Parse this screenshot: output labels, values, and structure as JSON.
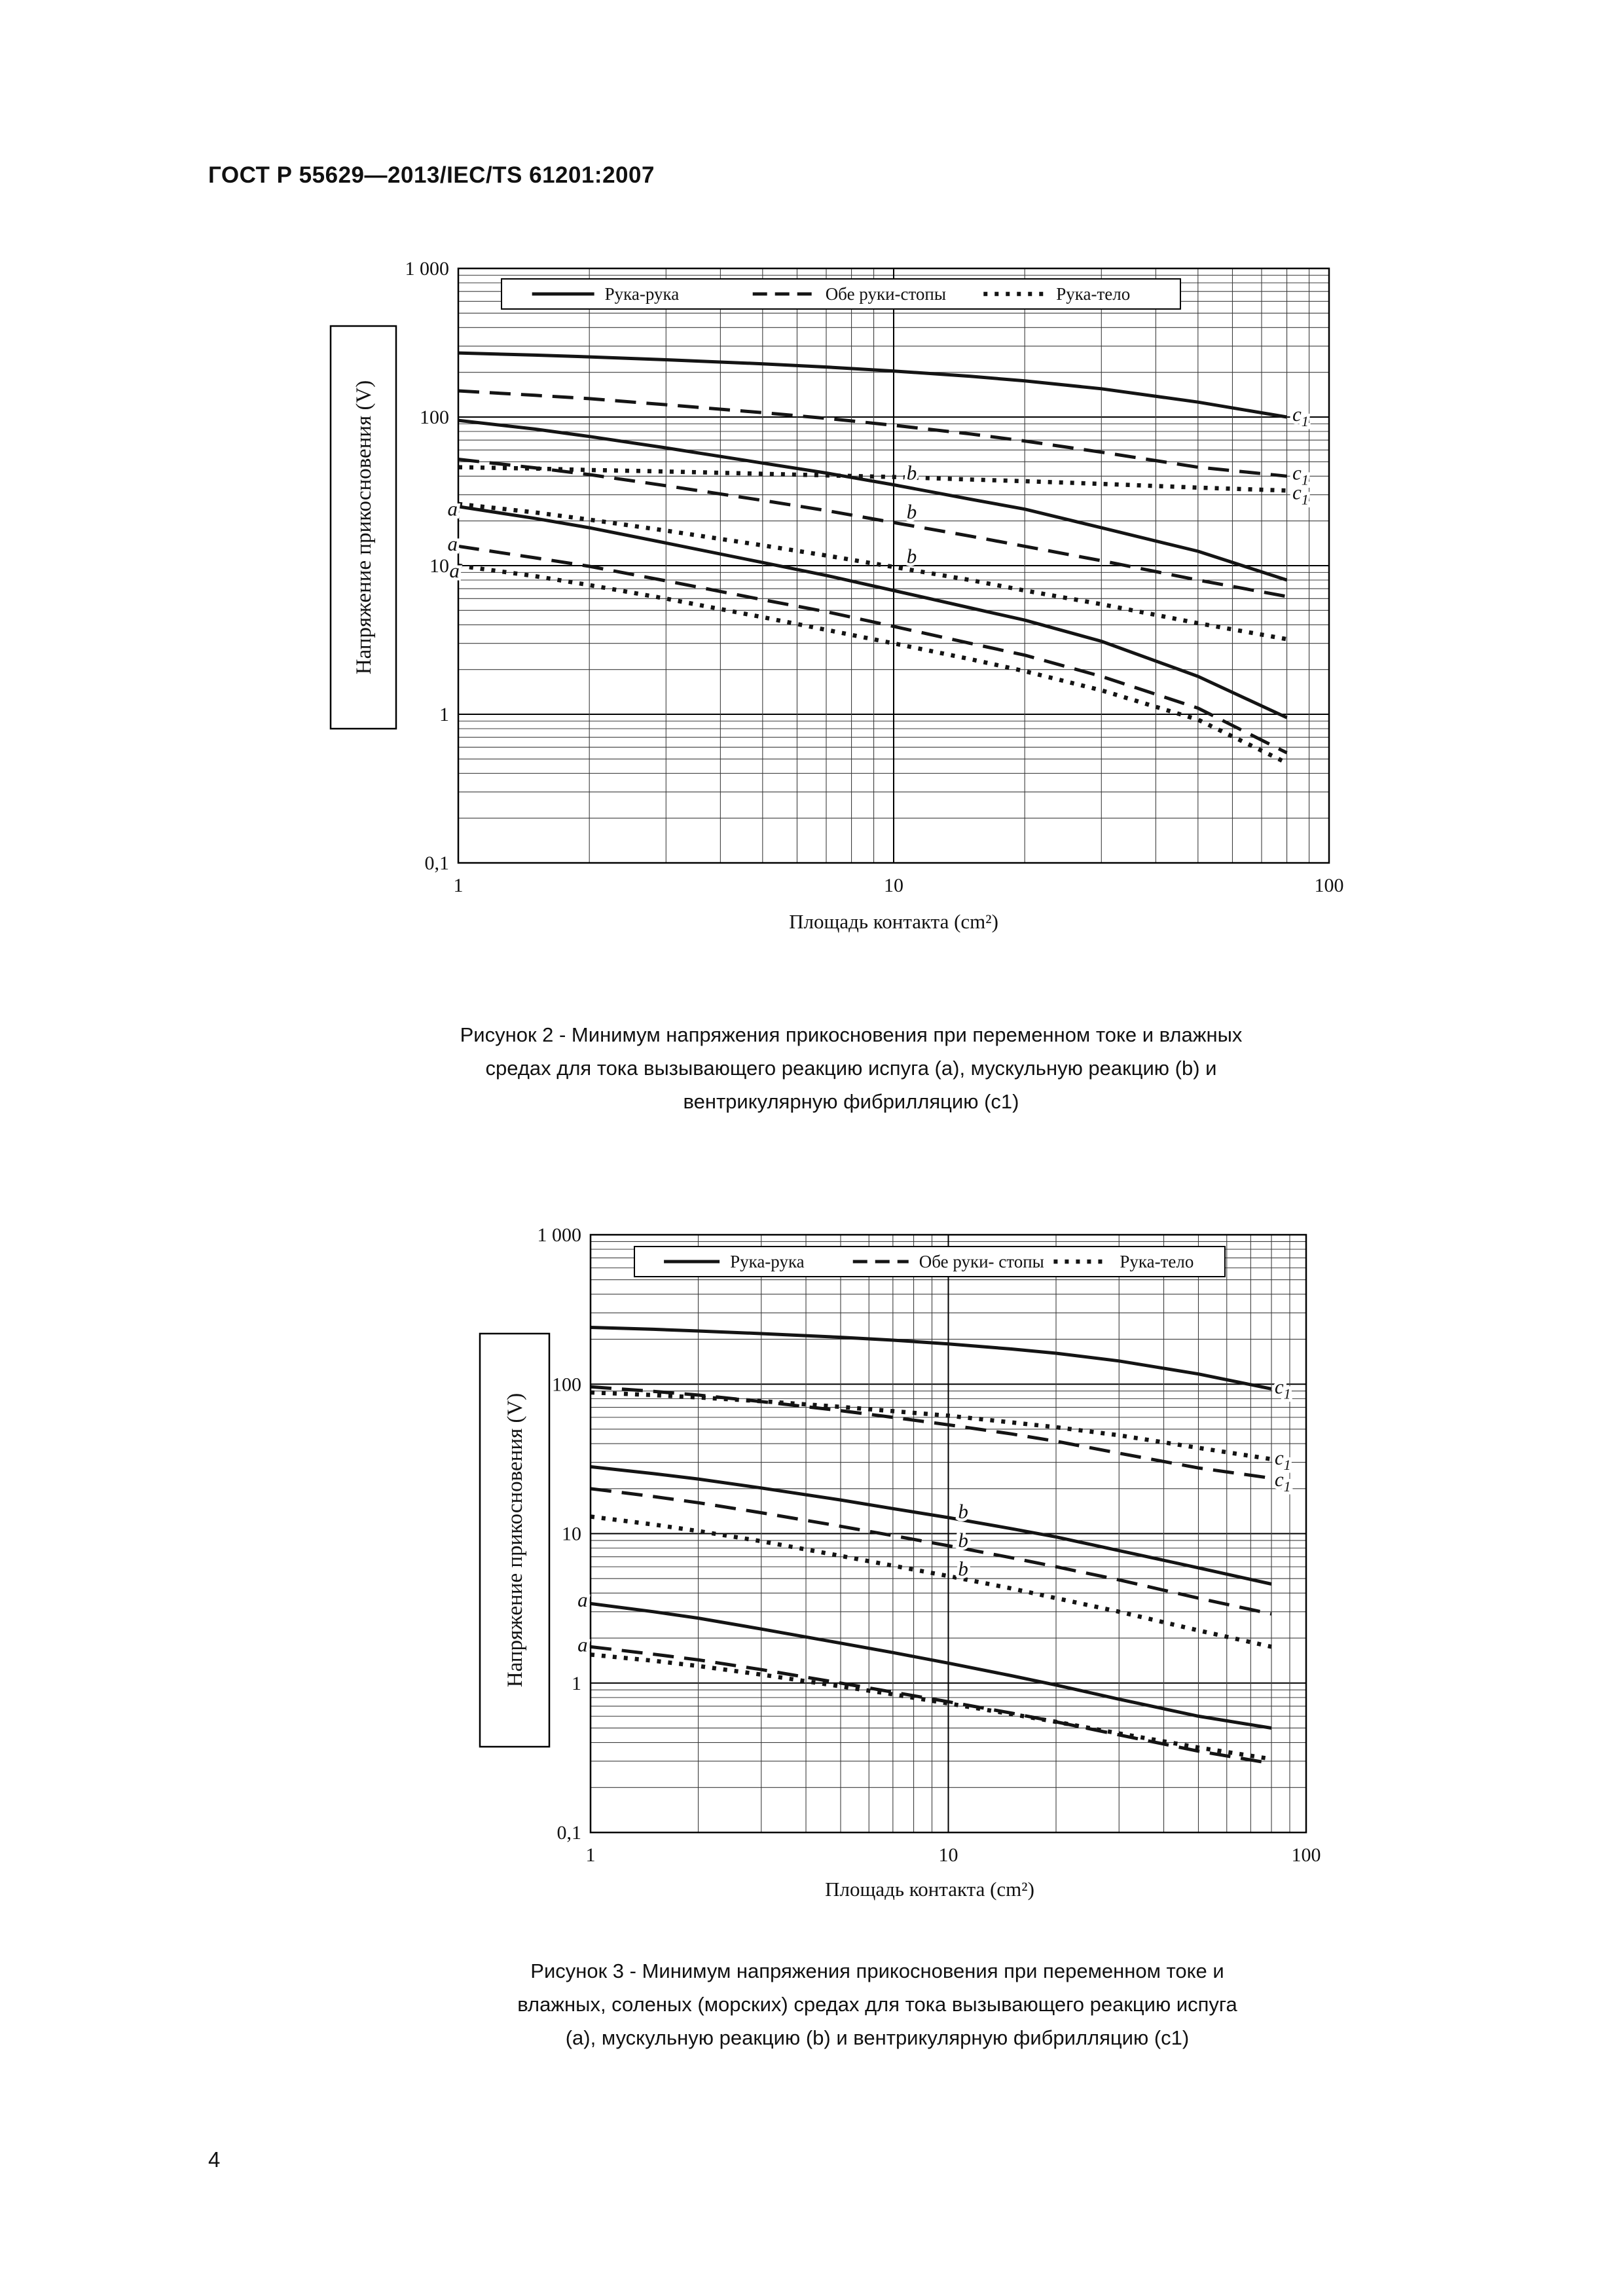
{
  "header": {
    "title": "ГОСТ Р 55629—2013/IEC/TS 61201:2007"
  },
  "footer": {
    "page_number": "4"
  },
  "captions": {
    "figure2": [
      "Рисунок 2 - Минимум напряжения прикосновения при переменном токе и влажных",
      "средах для тока вызывающего реакцию испуга (a), мускульную реакцию (b) и",
      "вентрикулярную фибрилляцию (c1)"
    ],
    "figure3": [
      "Рисунок 3 - Минимум напряжения прикосновения при переменном токе и",
      "влажных, соленых (морских) средах для тока вызывающего реакцию испуга",
      "(a), мускульную реакцию (b) и вентрикулярную фибрилляцию  (c1)"
    ]
  },
  "chart_data": [
    {
      "id": "figure2",
      "type": "line",
      "title": "",
      "xlabel": "Площадь контакта (cm²)",
      "ylabel": "Напряжение прикосновения (V)",
      "xscale": "log",
      "yscale": "log",
      "xlim": [
        1,
        100
      ],
      "ylim": [
        0.1,
        1000
      ],
      "grid": true,
      "legend_position": "top",
      "x_ticks": [
        {
          "label": "1",
          "value": 1
        },
        {
          "label": "10",
          "value": 10
        },
        {
          "label": "100",
          "value": 100
        }
      ],
      "y_ticks": [
        {
          "label": "1 000",
          "value": 1000
        },
        {
          "label": "100",
          "value": 100
        },
        {
          "label": "10",
          "value": 10
        },
        {
          "label": "1",
          "value": 1
        },
        {
          "label": "0,1",
          "value": 0.1
        }
      ],
      "legend": [
        {
          "label": "Рука-рука",
          "style": "solid"
        },
        {
          "label": "Обе руки-стопы",
          "style": "dashed"
        },
        {
          "label": "Рука-тело",
          "style": "dotted"
        }
      ],
      "x": [
        1,
        1.5,
        2,
        3,
        5,
        7,
        10,
        15,
        20,
        30,
        50,
        80
      ],
      "series": [
        {
          "name": "рука-рука c1",
          "style": "solid",
          "values": [
            270,
            261,
            254,
            243,
            228,
            217,
            204,
            188,
            175,
            155,
            126,
            100
          ]
        },
        {
          "name": "обе руки-стопы c1",
          "style": "dashed",
          "values": [
            150,
            140,
            133,
            121,
            107,
            98,
            88,
            77,
            69,
            58,
            46,
            40
          ]
        },
        {
          "name": "рука-тело c1",
          "style": "dotted",
          "values": [
            46,
            45,
            44,
            43,
            41.5,
            40.5,
            39.5,
            38,
            37,
            35.5,
            33.5,
            32
          ]
        },
        {
          "name": "рука-рука b",
          "style": "solid",
          "values": [
            95,
            83,
            74,
            62,
            49,
            42,
            35,
            28,
            24,
            18,
            12.5,
            8
          ]
        },
        {
          "name": "обе руки-стопы b",
          "style": "dashed",
          "values": [
            52,
            45.5,
            41,
            34.5,
            27.5,
            23.5,
            19.5,
            15.8,
            13.5,
            10.8,
            8,
            6.2
          ]
        },
        {
          "name": "рука-тело b",
          "style": "dotted",
          "values": [
            26,
            22.8,
            20.4,
            17.2,
            13.7,
            11.7,
            9.8,
            8,
            6.8,
            5.5,
            4.1,
            3.2
          ]
        },
        {
          "name": "рука-рука a",
          "style": "solid",
          "values": [
            25,
            20.8,
            18,
            14.2,
            10.5,
            8.6,
            6.8,
            5.2,
            4.3,
            3.1,
            1.8,
            0.95
          ]
        },
        {
          "name": "обе руки-стопы a",
          "style": "dashed",
          "values": [
            13.5,
            11.3,
            9.9,
            7.9,
            5.9,
            4.9,
            3.9,
            3.0,
            2.5,
            1.8,
            1.1,
            0.55
          ]
        },
        {
          "name": "рука-тело a",
          "style": "dotted",
          "values": [
            10,
            8.5,
            7.4,
            6.0,
            4.5,
            3.7,
            3.0,
            2.35,
            1.95,
            1.45,
            0.92,
            0.47
          ]
        }
      ],
      "annotations": [
        {
          "text": "c1",
          "x": 86,
          "y": 104
        },
        {
          "text": "c1",
          "x": 86,
          "y": 42
        },
        {
          "text": "c1",
          "x": 86,
          "y": 31
        },
        {
          "text": "b",
          "x": 11,
          "y": 42
        },
        {
          "text": "b",
          "x": 11,
          "y": 23
        },
        {
          "text": "b",
          "x": 11,
          "y": 11.5
        },
        {
          "text": "a",
          "x": 0.97,
          "y": 24
        },
        {
          "text": "a",
          "x": 0.97,
          "y": 14
        },
        {
          "text": "a",
          "x": 0.98,
          "y": 9.2
        }
      ]
    },
    {
      "id": "figure3",
      "type": "line",
      "title": "",
      "xlabel": "Площадь контакта (cm²)",
      "ylabel": "Напряжение прикосновения  (V)",
      "xscale": "log",
      "yscale": "log",
      "xlim": [
        1,
        100
      ],
      "ylim": [
        0.1,
        1000
      ],
      "grid": true,
      "legend_position": "top",
      "x_ticks": [
        {
          "label": "1",
          "value": 1
        },
        {
          "label": "10",
          "value": 10
        },
        {
          "label": "100",
          "value": 100
        }
      ],
      "y_ticks": [
        {
          "label": "1 000",
          "value": 1000
        },
        {
          "label": "100",
          "value": 100
        },
        {
          "label": "10",
          "value": 10
        },
        {
          "label": "1",
          "value": 1
        },
        {
          "label": "0,1",
          "value": 0.1
        }
      ],
      "legend": [
        {
          "label": "Рука-рука",
          "style": "solid"
        },
        {
          "label": "Обе руки- стопы",
          "style": "dashed"
        },
        {
          "label": "Рука-тело",
          "style": "dotted"
        }
      ],
      "x": [
        1,
        1.5,
        2,
        3,
        5,
        7,
        10,
        15,
        20,
        30,
        50,
        80
      ],
      "series": [
        {
          "name": "рука-рука c1",
          "style": "solid",
          "values": [
            240,
            233,
            227,
            218,
            206,
            197,
            186,
            172,
            161,
            143,
            117,
            93
          ]
        },
        {
          "name": "обе руки-стопы c1",
          "style": "dashed",
          "values": [
            96,
            89.5,
            84.5,
            76.5,
            66.5,
            60,
            53.5,
            46.5,
            41.5,
            34.5,
            27.5,
            23.5
          ]
        },
        {
          "name": "рука-тело c1",
          "style": "dotted",
          "values": [
            88,
            84.5,
            81.5,
            77,
            70.5,
            66,
            61.5,
            55.5,
            51.5,
            45.5,
            37.5,
            31.5
          ]
        },
        {
          "name": "рука-рука b",
          "style": "solid",
          "values": [
            28,
            25.2,
            23.2,
            20.2,
            16.8,
            14.7,
            12.8,
            10.8,
            9.5,
            7.7,
            5.9,
            4.6
          ]
        },
        {
          "name": "обе руки-стопы b",
          "style": "dashed",
          "values": [
            20,
            17.7,
            16.1,
            13.8,
            11.2,
            9.7,
            8.3,
            6.9,
            6.0,
            4.9,
            3.7,
            2.9
          ]
        },
        {
          "name": "рука-тело b",
          "style": "dotted",
          "values": [
            13,
            11.5,
            10.4,
            8.9,
            7.1,
            6.1,
            5.2,
            4.3,
            3.7,
            3.0,
            2.25,
            1.75
          ]
        },
        {
          "name": "рука-рука a",
          "style": "solid",
          "values": [
            3.4,
            3.0,
            2.72,
            2.3,
            1.85,
            1.6,
            1.36,
            1.12,
            0.97,
            0.78,
            0.6,
            0.5
          ]
        },
        {
          "name": "обе руки-стопы a",
          "style": "dashed",
          "values": [
            1.75,
            1.56,
            1.43,
            1.23,
            1.0,
            0.87,
            0.75,
            0.63,
            0.55,
            0.45,
            0.35,
            0.29
          ]
        },
        {
          "name": "рука-тело a",
          "style": "dotted",
          "values": [
            1.55,
            1.41,
            1.3,
            1.14,
            0.95,
            0.84,
            0.73,
            0.62,
            0.55,
            0.46,
            0.37,
            0.31
          ]
        }
      ],
      "annotations": [
        {
          "text": "c1",
          "x": 86,
          "y": 96
        },
        {
          "text": "c1",
          "x": 86,
          "y": 32
        },
        {
          "text": "c1",
          "x": 86,
          "y": 23
        },
        {
          "text": "b",
          "x": 11,
          "y": 14
        },
        {
          "text": "b",
          "x": 11,
          "y": 9
        },
        {
          "text": "b",
          "x": 11,
          "y": 5.8
        },
        {
          "text": "a",
          "x": 0.95,
          "y": 3.6
        },
        {
          "text": "a",
          "x": 0.95,
          "y": 1.8
        }
      ]
    }
  ]
}
